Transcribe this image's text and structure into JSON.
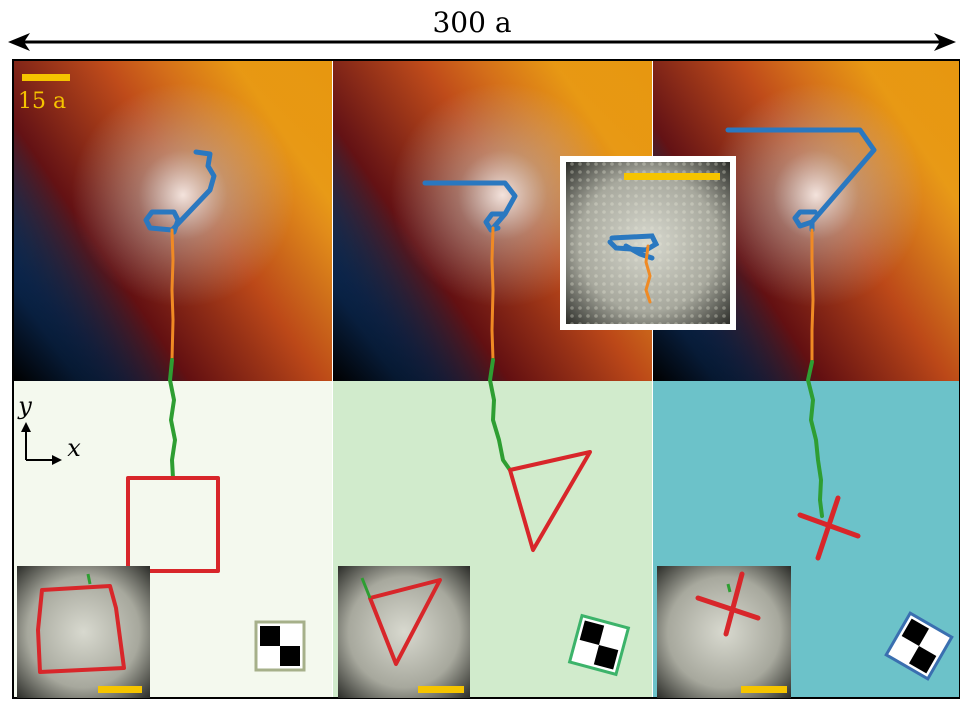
{
  "top_label": "300 a",
  "scale_label": "15 a",
  "axes": {
    "y_label": "y",
    "x_label": "x"
  },
  "colors": {
    "path_blue": "#2a78c0",
    "path_orange": "#f08a24",
    "path_green": "#2e9e32",
    "shape_red": "#d8262a",
    "scale_yellow": "#f5c400",
    "panel1_bg": "#f4f9ee",
    "panel2_bg": "#d1ebcc",
    "panel3_bg": "#6cc2c9",
    "marker1_border": "#a6b08a",
    "marker2_border": "#3cb36a",
    "marker3_border": "#3a6fb0"
  },
  "panels": [
    {
      "shape": "square",
      "marker_rotation_deg": 0
    },
    {
      "shape": "triangle",
      "marker_rotation_deg": 15
    },
    {
      "shape": "cross",
      "marker_rotation_deg": 30
    }
  ]
}
